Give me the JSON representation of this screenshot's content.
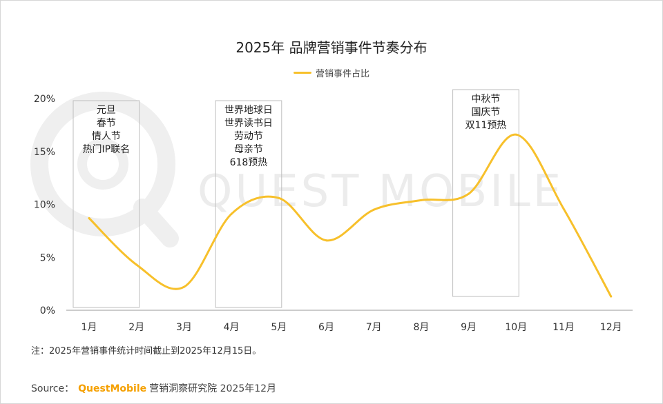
{
  "watermark": "QUEST MOBILE",
  "chart_data": {
    "type": "line",
    "title": "2025年 品牌营销事件节奏分布",
    "xlabel": "",
    "ylabel": "",
    "categories": [
      "1月",
      "2月",
      "3月",
      "4月",
      "5月",
      "6月",
      "7月",
      "8月",
      "9月",
      "10月",
      "11月",
      "12月"
    ],
    "series": [
      {
        "name": "营销事件占比",
        "color": "#f7c02b",
        "values": [
          8.7,
          4.3,
          2.2,
          9.1,
          10.6,
          6.6,
          9.5,
          10.4,
          11.0,
          16.6,
          9.6,
          1.3
        ]
      }
    ],
    "ylim": [
      0,
      20
    ],
    "yticks": [
      "0%",
      "5%",
      "10%",
      "15%",
      "20%"
    ],
    "grid": false,
    "legend": "top-center",
    "annotations": [
      {
        "from": "1月",
        "to": "2月",
        "lines": [
          "元旦",
          "春节",
          "情人节",
          "热门IP联名"
        ]
      },
      {
        "from": "4月",
        "to": "5月",
        "lines": [
          "世界地球日",
          "世界读书日",
          "劳动节",
          "母亲节",
          "618预热"
        ]
      },
      {
        "from": "9月",
        "to": "10月",
        "lines": [
          "中秋节",
          "国庆节",
          "双11预热"
        ]
      }
    ]
  },
  "note": "注：2025年营销事件统计时间截止到2025年12月15日。",
  "source": {
    "label": "Source",
    "sep": "：",
    "brand": "QuestMobile",
    "rest": "营销洞察研究院 2025年12月"
  }
}
